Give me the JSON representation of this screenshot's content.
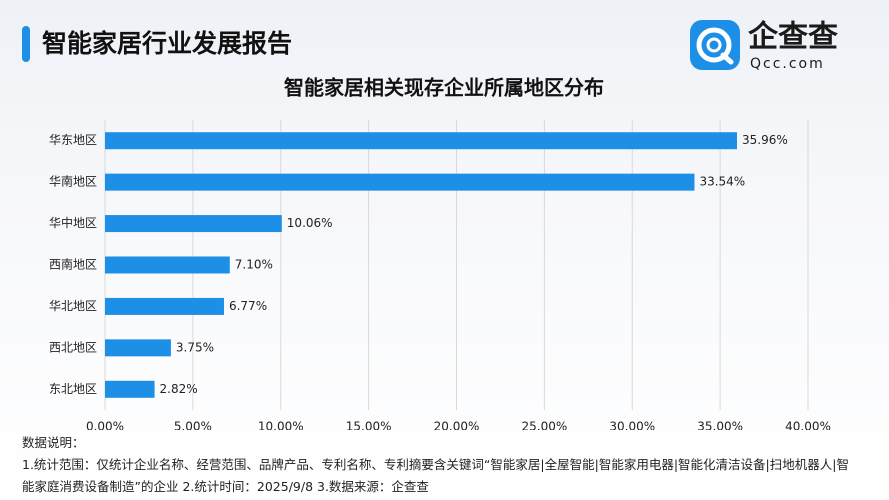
{
  "header": {
    "title": "智能家居行业发展报告"
  },
  "logo": {
    "name": "企查查",
    "domain": "Qcc.com"
  },
  "chart_data": {
    "type": "bar",
    "orientation": "horizontal",
    "title": "智能家居相关现存企业所属地区分布",
    "categories": [
      "华东地区",
      "华南地区",
      "华中地区",
      "西南地区",
      "华北地区",
      "西北地区",
      "东北地区"
    ],
    "values": [
      35.96,
      33.54,
      10.06,
      7.1,
      6.77,
      3.75,
      2.82
    ],
    "value_labels": [
      "35.96%",
      "33.54%",
      "10.06%",
      "7.10%",
      "6.77%",
      "3.75%",
      "2.82%"
    ],
    "color": "#1e8fe6",
    "xlim": [
      0,
      40
    ],
    "xticks": [
      {
        "value": 0,
        "label": "0.00%"
      },
      {
        "value": 5,
        "label": "5.00%"
      },
      {
        "value": 10,
        "label": "10.00%"
      },
      {
        "value": 15,
        "label": "15.00%"
      },
      {
        "value": 20,
        "label": "20.00%"
      },
      {
        "value": 25,
        "label": "25.00%"
      },
      {
        "value": 30,
        "label": "30.00%"
      },
      {
        "value": 35,
        "label": "35.00%"
      },
      {
        "value": 40,
        "label": "40.00%"
      }
    ],
    "grid": true
  },
  "notes": {
    "heading": "数据说明：",
    "text": "1.统计范围：仅统计企业名称、经营范围、品牌产品、专利名称、专利摘要含关键词“智能家居|全屋智能|智能家用电器|智能化清洁设备|扫地机器人|智能家庭消费设备制造”的企业  2.统计时间：2025/9/8  3.数据来源：企查查"
  }
}
